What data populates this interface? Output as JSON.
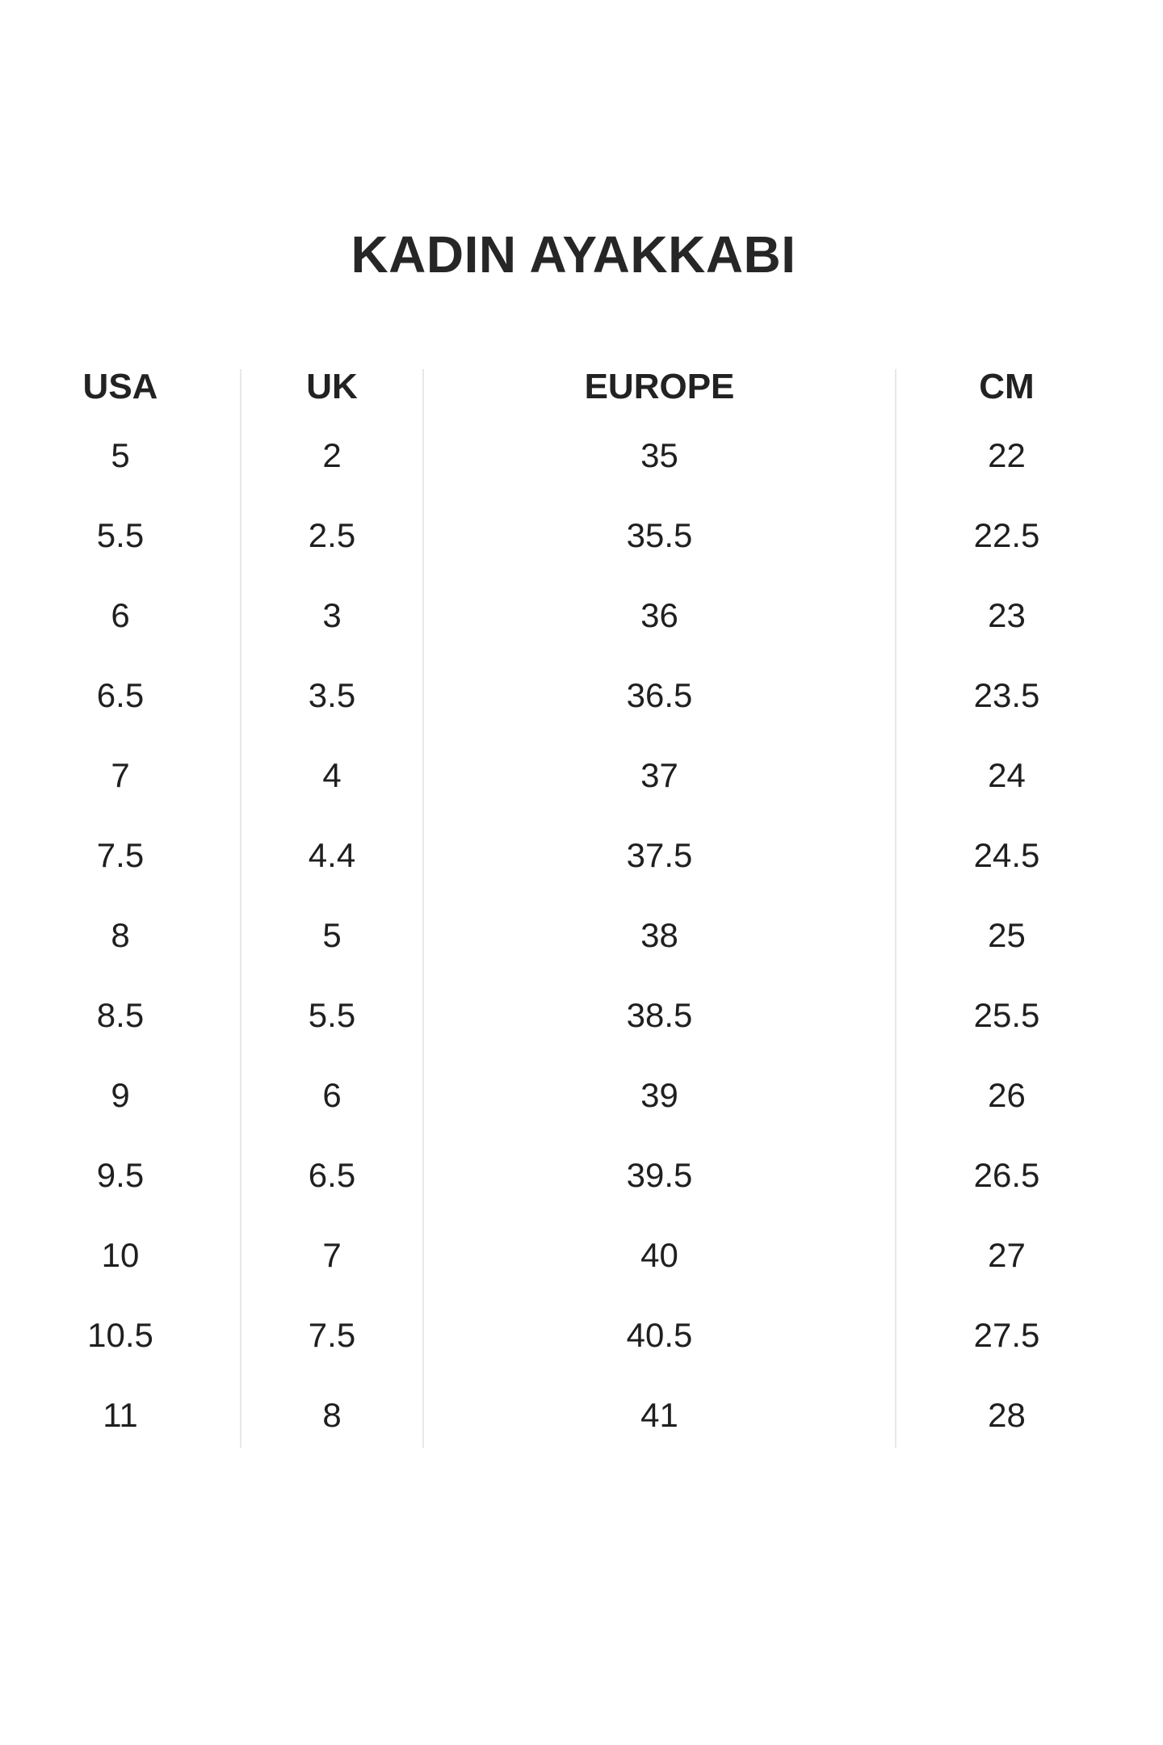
{
  "title": "KADIN AYAKKABI",
  "colors": {
    "background": "#ffffff",
    "title_text": "#262626",
    "table_text": "#1f1f1f",
    "divider": "#e8e8e8"
  },
  "chart_data": {
    "type": "table",
    "title": "KADIN AYAKKABI",
    "columns": [
      "USA",
      "UK",
      "EUROPE",
      "CM"
    ],
    "rows": [
      [
        "5",
        "2",
        "35",
        "22"
      ],
      [
        "5.5",
        "2.5",
        "35.5",
        "22.5"
      ],
      [
        "6",
        "3",
        "36",
        "23"
      ],
      [
        "6.5",
        "3.5",
        "36.5",
        "23.5"
      ],
      [
        "7",
        "4",
        "37",
        "24"
      ],
      [
        "7.5",
        "4.4",
        "37.5",
        "24.5"
      ],
      [
        "8",
        "5",
        "38",
        "25"
      ],
      [
        "8.5",
        "5.5",
        "38.5",
        "25.5"
      ],
      [
        "9",
        "6",
        "39",
        "26"
      ],
      [
        "9.5",
        "6.5",
        "39.5",
        "26.5"
      ],
      [
        "10",
        "7",
        "40",
        "27"
      ],
      [
        "10.5",
        "7.5",
        "40.5",
        "27.5"
      ],
      [
        "11",
        "8",
        "41",
        "28"
      ]
    ],
    "layout": {
      "grid": "off",
      "horizontal_rules": "none",
      "vertical_dividers_between_columns": true
    }
  }
}
